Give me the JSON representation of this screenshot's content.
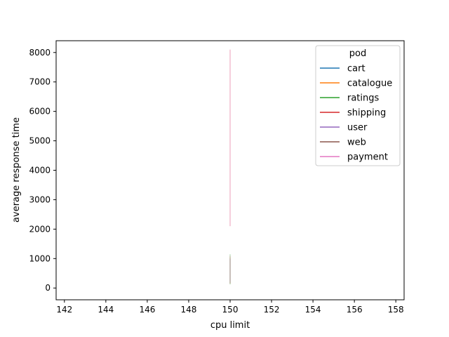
{
  "chart_data": {
    "type": "line",
    "title": "",
    "xlabel": "cpu limit",
    "ylabel": "average response time",
    "xlim": [
      141.6,
      158.4
    ],
    "ylim": [
      -400,
      8400
    ],
    "xticks": [
      142,
      144,
      146,
      148,
      150,
      152,
      154,
      156,
      158
    ],
    "yticks": [
      0,
      1000,
      2000,
      3000,
      4000,
      5000,
      6000,
      7000,
      8000
    ],
    "grid": false,
    "legend": {
      "title": "pod",
      "placement": "top-right"
    },
    "series": [
      {
        "name": "cart",
        "color": "#1f77b4",
        "x": [
          150,
          150
        ],
        "y": [
          150,
          1000
        ]
      },
      {
        "name": "catalogue",
        "color": "#ff7f0e",
        "x": [
          150,
          150
        ],
        "y": [
          150,
          1050
        ]
      },
      {
        "name": "ratings",
        "color": "#2ca02c",
        "x": [
          150,
          150
        ],
        "y": [
          120,
          1150
        ]
      },
      {
        "name": "shipping",
        "color": "#d62728",
        "x": [
          150,
          150
        ],
        "y": [
          2100,
          8100
        ]
      },
      {
        "name": "user",
        "color": "#9467bd",
        "x": [
          150,
          150
        ],
        "y": [
          200,
          1000
        ]
      },
      {
        "name": "web",
        "color": "#8c564b",
        "x": [
          150,
          150
        ],
        "y": [
          150,
          1100
        ]
      },
      {
        "name": "payment",
        "color": "#e377c2",
        "x": [
          150,
          150
        ],
        "y": [
          2100,
          8100
        ]
      }
    ]
  }
}
